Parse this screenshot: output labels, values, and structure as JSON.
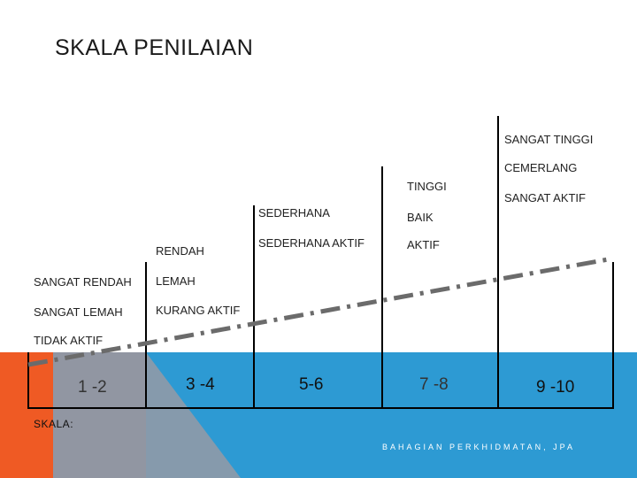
{
  "title": "SKALA PENILAIAN",
  "colors": {
    "orange": "#ef5a24",
    "blue": "#2d9ad3",
    "gray_triangle": "#8b9aaa",
    "dashed_line": "#6b6b6b",
    "bar_lines": "#000000"
  },
  "levels": {
    "col1": [
      "SANGAT RENDAH",
      "SANGAT LEMAH",
      "TIDAK AKTIF"
    ],
    "col2": [
      "RENDAH",
      "LEMAH",
      "KURANG AKTIF"
    ],
    "col3": [
      "SEDERHANA",
      "SEDERHANA AKTIF"
    ],
    "col4": [
      "TINGGI",
      "BAIK",
      "AKTIF"
    ],
    "col5": [
      "SANGAT TINGGI",
      "CEMERLANG",
      "SANGAT AKTIF"
    ]
  },
  "scores": [
    "1 -2",
    "3 -4",
    "5-6",
    "7 -8",
    "9 -10"
  ],
  "scale_label": "SKALA:",
  "footer": "BAHAGIAN PERKHIDMATAN, JPA"
}
